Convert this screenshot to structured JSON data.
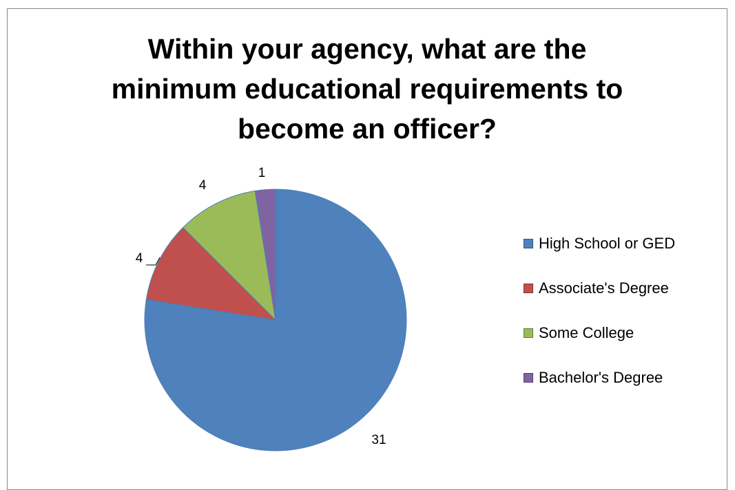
{
  "chart_data": {
    "type": "pie",
    "title": "Within your agency, what are the minimum educational requirements to become an officer?",
    "title_lines": [
      "Within your agency, what are the",
      "minimum educational requirements to",
      "become an officer?"
    ],
    "categories": [
      "High School or GED",
      "Associate's Degree",
      "Some College",
      "Bachelor's Degree"
    ],
    "values": [
      31,
      4,
      4,
      1
    ],
    "colors": [
      "#4F81BD",
      "#C0504D",
      "#9BBB59",
      "#8064A2"
    ],
    "slice_stroke": "#4A7DB8",
    "data_labels": [
      "31",
      "4",
      "4",
      "1"
    ],
    "legend_position": "right",
    "grid": false
  }
}
